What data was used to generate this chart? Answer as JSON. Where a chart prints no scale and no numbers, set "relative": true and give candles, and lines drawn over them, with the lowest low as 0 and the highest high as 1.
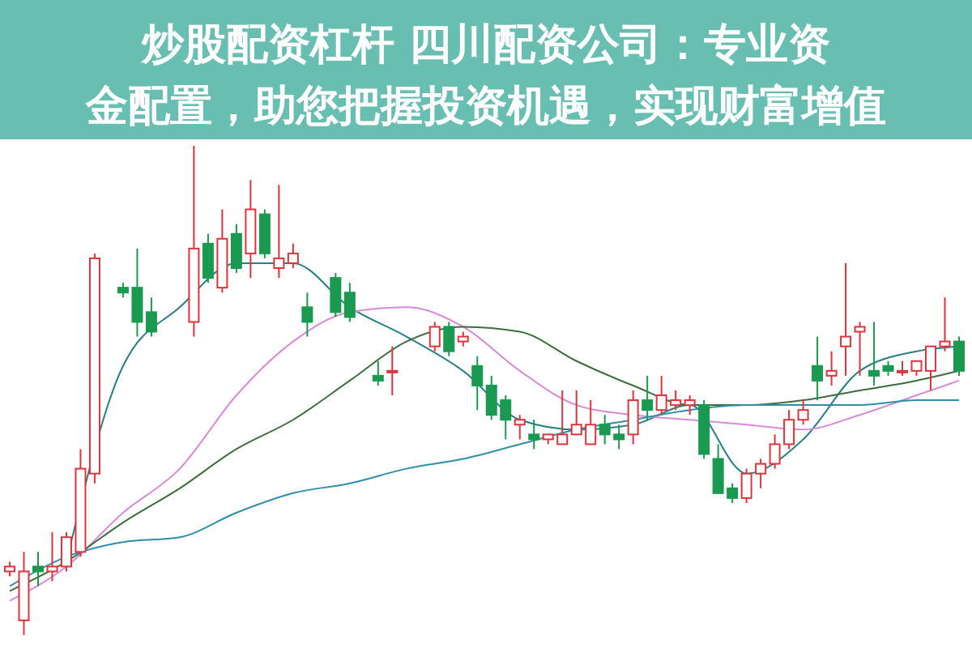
{
  "chart_data": {
    "type": "candlestick",
    "title": "炒股配资杠杆 四川配资公司：专业资金配置，助您把握投资机遇，实现财富增值",
    "relative": true,
    "categories": [
      null,
      null,
      null,
      null,
      null,
      null,
      null,
      null,
      null,
      null,
      null,
      null,
      null,
      null,
      null,
      null,
      null,
      null,
      null,
      null,
      null,
      null,
      null,
      null,
      null,
      null,
      null,
      null,
      null,
      null,
      null,
      null,
      null,
      null,
      null,
      null,
      null,
      null,
      null,
      null,
      null,
      null,
      null,
      null,
      null,
      null,
      null,
      null,
      null,
      null,
      null,
      null,
      null,
      null,
      null,
      null,
      null,
      null,
      null,
      null,
      null,
      null,
      null,
      null,
      null,
      null,
      null,
      null
    ],
    "ohlc": [
      [
        0.13,
        0.15,
        0.12,
        0.14
      ],
      [
        0.03,
        0.17,
        0,
        0.13
      ],
      [
        0.14,
        0.17,
        0.1,
        0.13
      ],
      [
        0.13,
        0.21,
        0.11,
        0.14
      ],
      [
        0.14,
        0.21,
        0.13,
        0.2
      ],
      [
        0.17,
        0.38,
        0.16,
        0.34
      ],
      [
        0.33,
        0.78,
        0.31,
        0.77
      ],
      null,
      [
        0.71,
        0.72,
        0.69,
        0.7
      ],
      [
        0.71,
        0.79,
        0.61,
        0.64
      ],
      [
        0.66,
        0.69,
        0.61,
        0.62
      ],
      null,
      null,
      [
        0.64,
        1,
        0.61,
        0.79
      ],
      [
        0.8,
        0.82,
        0.72,
        0.73
      ],
      [
        0.71,
        0.87,
        0.7,
        0.81
      ],
      [
        0.82,
        0.84,
        0.74,
        0.75
      ],
      [
        0.78,
        0.93,
        0.73,
        0.87
      ],
      [
        0.86,
        0.87,
        0.77,
        0.78
      ],
      [
        0.75,
        0.92,
        0.73,
        0.77
      ],
      [
        0.76,
        0.8,
        0.75,
        0.78
      ],
      [
        0.67,
        0.7,
        0.61,
        0.64
      ],
      null,
      [
        0.73,
        0.74,
        0.65,
        0.66
      ],
      [
        0.7,
        0.72,
        0.64,
        0.65
      ],
      null,
      [
        0.53,
        0.56,
        0.51,
        0.52
      ],
      [
        0.54,
        0.59,
        0.49,
        0.54
      ],
      null,
      null,
      [
        0.59,
        0.64,
        0.58,
        0.63
      ],
      [
        0.63,
        0.64,
        0.57,
        0.58
      ],
      [
        0.6,
        0.62,
        0.59,
        0.61
      ],
      [
        0.55,
        0.57,
        0.46,
        0.51
      ],
      [
        0.51,
        0.53,
        0.44,
        0.45
      ],
      [
        0.48,
        0.49,
        0.4,
        0.44
      ],
      [
        0.43,
        0.45,
        0.4,
        0.44
      ],
      [
        0.41,
        0.44,
        0.38,
        0.4
      ],
      [
        0.4,
        0.41,
        0.39,
        0.41
      ],
      [
        0.39,
        0.5,
        0.39,
        0.41
      ],
      [
        0.41,
        0.5,
        0.41,
        0.43
      ],
      [
        0.39,
        0.48,
        0.39,
        0.43
      ],
      [
        0.43,
        0.45,
        0.39,
        0.41
      ],
      [
        0.41,
        0.43,
        0.38,
        0.4
      ],
      [
        0.41,
        0.5,
        0.39,
        0.48
      ],
      [
        0.48,
        0.53,
        0.44,
        0.46
      ],
      [
        0.46,
        0.53,
        0.45,
        0.49
      ],
      [
        0.47,
        0.5,
        0.46,
        0.48
      ],
      [
        0.47,
        0.49,
        0.45,
        0.48
      ],
      [
        0.47,
        0.48,
        0.36,
        0.37
      ],
      [
        0.36,
        0.39,
        0.29,
        0.29
      ],
      [
        0.3,
        0.31,
        0.27,
        0.28
      ],
      [
        0.28,
        0.34,
        0.27,
        0.33
      ],
      [
        0.33,
        0.36,
        0.3,
        0.35
      ],
      [
        0.35,
        0.41,
        0.34,
        0.39
      ],
      [
        0.39,
        0.46,
        0.38,
        0.44
      ],
      [
        0.44,
        0.48,
        0.43,
        0.46
      ],
      [
        0.55,
        0.61,
        0.48,
        0.52
      ],
      [
        0.53,
        0.58,
        0.51,
        0.54
      ],
      [
        0.59,
        0.76,
        0.53,
        0.61
      ],
      [
        0.62,
        0.64,
        0.53,
        0.63
      ],
      [
        0.54,
        0.64,
        0.51,
        0.53
      ],
      [
        0.55,
        0.56,
        0.53,
        0.54
      ],
      [
        0.54,
        0.56,
        0.53,
        0.54
      ],
      [
        0.54,
        0.56,
        0.53,
        0.56
      ],
      [
        0.54,
        0.59,
        0.5,
        0.59
      ],
      [
        0.59,
        0.69,
        0.58,
        0.6
      ],
      [
        0.6,
        0.61,
        0.53,
        0.54
      ]
    ],
    "series": [
      {
        "type": "line",
        "color": "#2a7f86",
        "values": [
          null,
          null,
          null,
          null,
          0.15,
          null,
          null,
          null,
          0.55,
          null,
          null,
          null,
          0.67,
          null,
          null,
          null,
          0.76,
          null,
          null,
          null,
          0.76,
          null,
          null,
          null,
          0.67,
          null,
          null,
          null,
          0.61,
          null,
          null,
          null,
          0.54,
          null,
          null,
          null,
          0.44,
          null,
          null,
          null,
          0.42,
          null,
          null,
          null,
          0.43,
          null,
          null,
          null,
          0.47,
          null,
          null,
          null,
          0.33,
          null,
          null,
          null,
          0.4,
          null,
          null,
          null,
          0.54,
          null,
          null,
          null,
          0.58,
          null,
          null,
          0.59
        ]
      },
      {
        "type": "line",
        "color": "#d98ad6",
        "values": [
          0.07,
          null,
          null,
          null,
          0.14,
          null,
          null,
          null,
          0.25,
          null,
          null,
          null,
          0.34,
          null,
          null,
          null,
          0.49,
          null,
          null,
          null,
          0.6,
          null,
          null,
          null,
          0.66,
          null,
          null,
          null,
          0.67,
          null,
          null,
          null,
          0.63,
          null,
          null,
          null,
          0.54,
          null,
          null,
          null,
          0.47,
          null,
          null,
          null,
          0.45,
          null,
          null,
          null,
          0.44,
          null,
          null,
          null,
          0.43,
          null,
          null,
          null,
          0.42,
          null,
          null,
          null,
          0.45,
          null,
          null,
          null,
          0.49,
          null,
          null,
          0.52
        ]
      },
      {
        "type": "line",
        "color": "#3d6e3d",
        "values": [
          0.09,
          null,
          null,
          null,
          0.15,
          null,
          null,
          null,
          0.23,
          null,
          null,
          null,
          0.3,
          null,
          null,
          null,
          0.38,
          null,
          null,
          null,
          0.44,
          null,
          null,
          null,
          0.52,
          null,
          null,
          null,
          0.6,
          null,
          null,
          null,
          0.63,
          null,
          null,
          null,
          0.62,
          null,
          null,
          null,
          0.56,
          null,
          null,
          null,
          0.51,
          null,
          null,
          null,
          0.47,
          null,
          null,
          null,
          0.47,
          null,
          null,
          null,
          0.48,
          null,
          null,
          null,
          0.5,
          null,
          null,
          null,
          0.52,
          null,
          null,
          0.54
        ]
      },
      {
        "type": "line",
        "color": "#2f8fa8",
        "values": [
          0.1,
          null,
          null,
          null,
          0.16,
          null,
          null,
          null,
          0.19,
          null,
          null,
          null,
          0.2,
          null,
          null,
          null,
          0.25,
          null,
          null,
          null,
          0.29,
          null,
          null,
          null,
          0.31,
          null,
          null,
          null,
          0.34,
          null,
          null,
          null,
          0.36,
          null,
          null,
          null,
          0.39,
          null,
          null,
          null,
          0.42,
          null,
          null,
          null,
          0.44,
          null,
          null,
          null,
          0.46,
          null,
          null,
          null,
          0.47,
          null,
          null,
          null,
          0.47,
          null,
          null,
          null,
          0.47,
          null,
          null,
          null,
          0.48,
          null,
          null,
          0.48
        ]
      }
    ]
  }
}
